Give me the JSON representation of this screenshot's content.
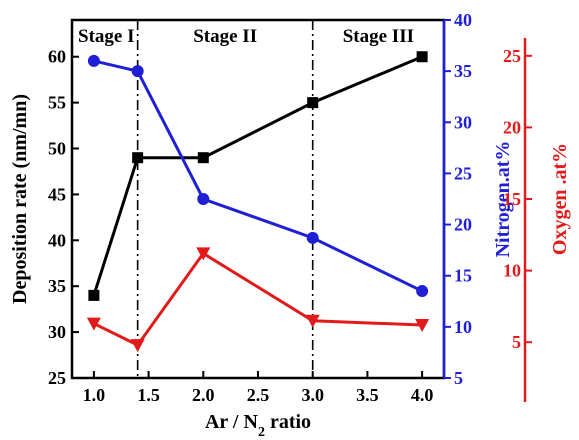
{
  "chart_data": {
    "type": "line",
    "xlabel": {
      "main": "Ar / N",
      "sub": "2",
      "tail": " ratio"
    },
    "xlim": [
      0.8,
      4.2
    ],
    "xticks": [
      "1.0",
      "1.5",
      "2.0",
      "2.5",
      "3.0",
      "3.5",
      "4.0"
    ],
    "stage_labels": [
      "Stage I",
      "Stage II",
      "Stage III"
    ],
    "stage_boundaries": [
      1.4,
      3.0
    ],
    "axes": {
      "left": {
        "label": "Deposition rate (nm/mn)",
        "ylim": [
          25,
          64
        ],
        "ticks": [
          "25",
          "30",
          "35",
          "40",
          "45",
          "50",
          "55",
          "60"
        ],
        "color": "#000000"
      },
      "right1": {
        "label": "Nitrogen.at%",
        "ylim": [
          5,
          40
        ],
        "ticks": [
          "5",
          "10",
          "15",
          "20",
          "25",
          "30",
          "35",
          "40"
        ],
        "color": "#1f1fd6"
      },
      "right2": {
        "label": "Oxygen .at%",
        "ylim": [
          2.5,
          27.5
        ],
        "ticks": [
          "5",
          "10",
          "15",
          "20",
          "25"
        ],
        "color": "#e31a1a"
      }
    },
    "series": [
      {
        "axis": "left",
        "marker": "square",
        "color": "#000000",
        "x": [
          1.0,
          1.4,
          2.0,
          3.0,
          4.0
        ],
        "y": [
          34,
          49,
          49,
          55,
          60
        ]
      },
      {
        "axis": "right1",
        "marker": "circle",
        "color": "#1f1fd6",
        "x": [
          1.0,
          1.4,
          2.0,
          3.0,
          4.0
        ],
        "y": [
          36,
          35,
          22.5,
          18.7,
          13.5
        ]
      },
      {
        "axis": "right2",
        "marker": "triangle",
        "color": "#e31a1a",
        "x": [
          1.0,
          1.4,
          2.0,
          3.0,
          4.0
        ],
        "y": [
          6.3,
          4.8,
          11.2,
          6.5,
          6.2
        ]
      }
    ]
  }
}
